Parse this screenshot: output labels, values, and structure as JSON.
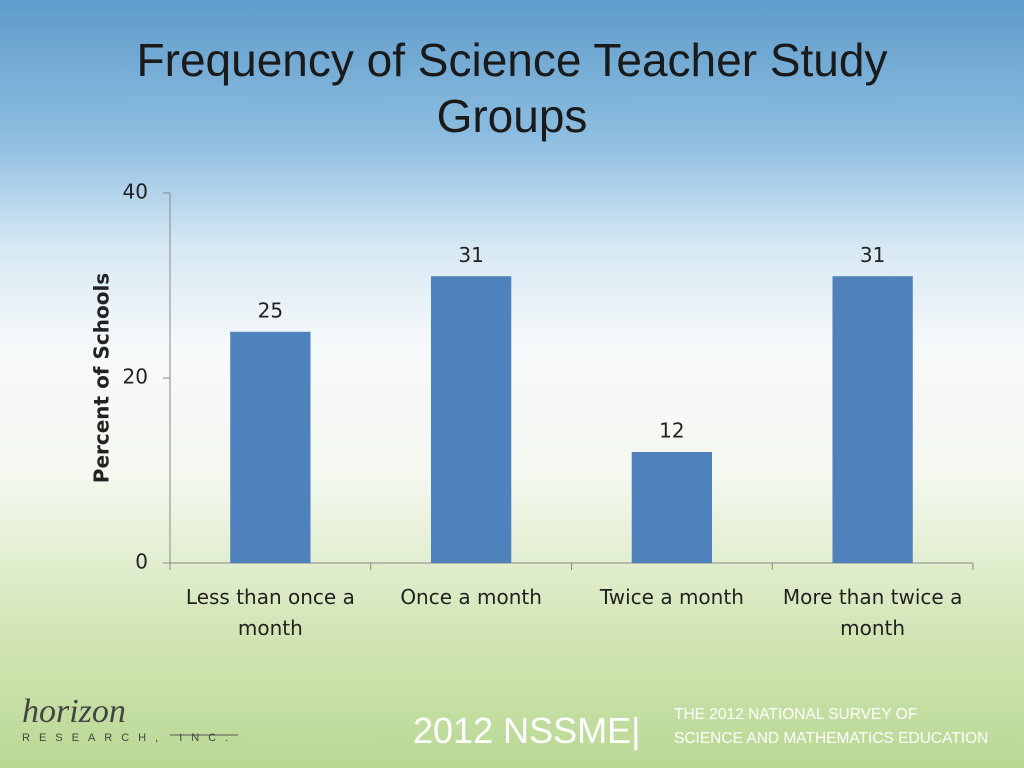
{
  "chart_data": {
    "type": "bar",
    "title": "Frequency of Science Teacher Study Groups",
    "y_label": "Percent of Schools",
    "categories": [
      "Less than once a month",
      "Once a month",
      "Twice a month",
      "More than twice a month"
    ],
    "values": [
      25,
      31,
      12,
      31
    ],
    "color": "#4f81bd",
    "ylim": [
      0,
      40
    ],
    "yticks": [
      0,
      20,
      40
    ],
    "grid": false
  },
  "footer": {
    "survey": "2012 NSSME|",
    "line1": "THE 2012 NATIONAL SURVEY OF",
    "line2": "SCIENCE AND MATHEMATICS EDUCATION"
  },
  "logo": {
    "name": "horizon",
    "subtitle": "RESEARCH, INC."
  }
}
